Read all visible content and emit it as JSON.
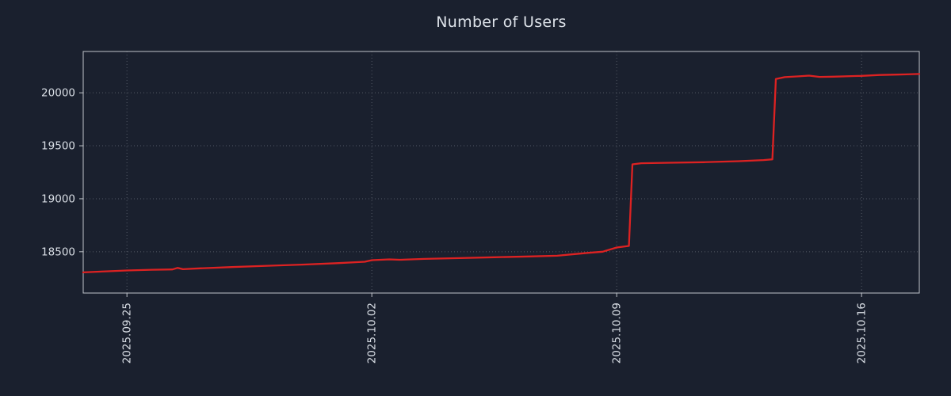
{
  "chart_data": {
    "type": "line",
    "title": "Number of Users",
    "xlabel": "",
    "ylabel": "",
    "legend": "none",
    "grid": true,
    "x_tick_labels": [
      "2025.09.25",
      "2025.10.02",
      "2025.10.09",
      "2025.10.16"
    ],
    "x_tick_positions": [
      0,
      7,
      14,
      21
    ],
    "y_ticks": [
      18500,
      19000,
      19500,
      20000
    ],
    "xlim": [
      -1.25,
      22.65
    ],
    "ylim": [
      18110,
      20390
    ],
    "colors": {
      "line": "#dd2222",
      "background": "#1a202e",
      "text": "#d9dee5",
      "grid": "#9aa0a8",
      "frame": "#c0c4ca"
    },
    "series": [
      {
        "name": "Number of Users",
        "points": [
          [
            -1.25,
            18305
          ],
          [
            -0.6,
            18315
          ],
          [
            0.0,
            18323
          ],
          [
            0.7,
            18330
          ],
          [
            1.3,
            18333
          ],
          [
            1.45,
            18348
          ],
          [
            1.6,
            18335
          ],
          [
            2.2,
            18345
          ],
          [
            3.0,
            18355
          ],
          [
            4.0,
            18367
          ],
          [
            5.0,
            18378
          ],
          [
            6.0,
            18392
          ],
          [
            6.8,
            18405
          ],
          [
            7.0,
            18420
          ],
          [
            7.5,
            18428
          ],
          [
            7.8,
            18424
          ],
          [
            8.5,
            18432
          ],
          [
            9.5,
            18440
          ],
          [
            10.5,
            18448
          ],
          [
            11.5,
            18455
          ],
          [
            12.3,
            18462
          ],
          [
            12.8,
            18478
          ],
          [
            13.2,
            18490
          ],
          [
            13.6,
            18500
          ],
          [
            14.0,
            18540
          ],
          [
            14.35,
            18555
          ],
          [
            14.45,
            19325
          ],
          [
            14.7,
            19335
          ],
          [
            15.5,
            19340
          ],
          [
            16.5,
            19345
          ],
          [
            17.5,
            19355
          ],
          [
            18.2,
            19365
          ],
          [
            18.45,
            19372
          ],
          [
            18.55,
            20130
          ],
          [
            18.8,
            20148
          ],
          [
            19.2,
            20155
          ],
          [
            19.5,
            20162
          ],
          [
            19.8,
            20150
          ],
          [
            20.2,
            20152
          ],
          [
            20.8,
            20158
          ],
          [
            21.0,
            20160
          ],
          [
            21.5,
            20168
          ],
          [
            22.0,
            20172
          ],
          [
            22.65,
            20178
          ]
        ]
      }
    ]
  }
}
